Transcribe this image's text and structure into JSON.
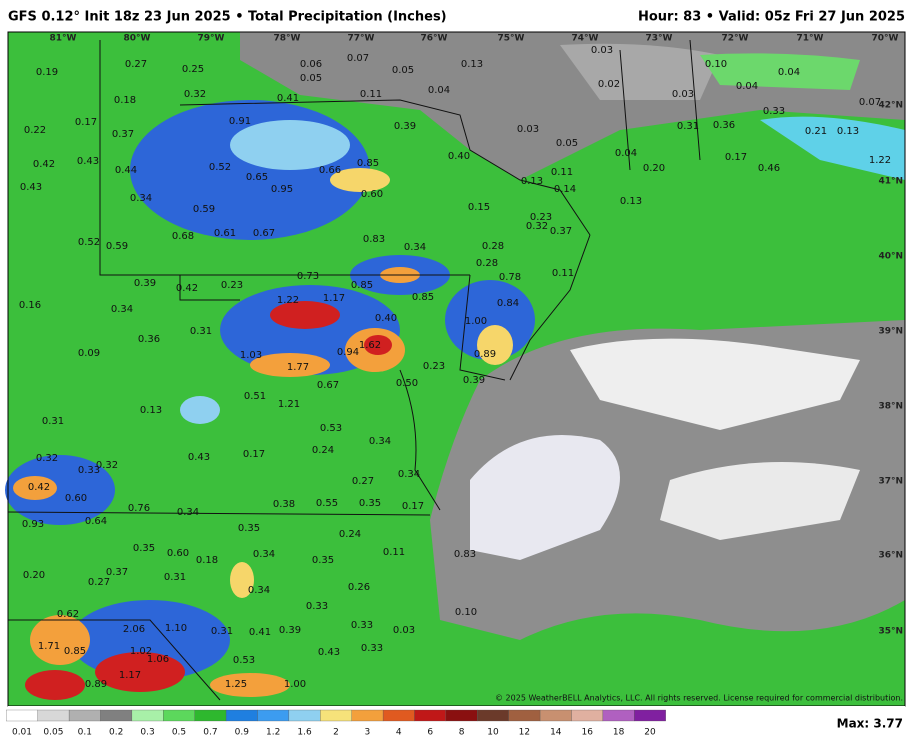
{
  "header": {
    "title": "GFS 0.12° Init 18z 23 Jun 2025 • Total Precipitation (Inches)",
    "valid": "Hour: 83 • Valid: 05z Fri 27 Jun 2025"
  },
  "longitudes": [
    "81°W",
    "80°W",
    "79°W",
    "78°W",
    "77°W",
    "76°W",
    "75°W",
    "74°W",
    "73°W",
    "72°W",
    "71°W",
    "70°W"
  ],
  "latitudes": [
    "42°N",
    "41°N",
    "40°N",
    "39°N",
    "38°N",
    "37°N",
    "36°N",
    "35°N"
  ],
  "map_labels": [
    "0.19",
    "0.27",
    "0.25",
    "0.06",
    "0.05",
    "0.07",
    "0.05",
    "0.13",
    "0.03",
    "0.10",
    "0.04",
    "0.18",
    "0.32",
    "0.41",
    "0.11",
    "0.04",
    "0.02",
    "0.03",
    "0.04",
    "0.07",
    "0.22",
    "0.17",
    "0.37",
    "0.91",
    "0.39",
    "0.03",
    "0.31",
    "0.36",
    "0.33",
    "0.21",
    "0.13",
    "0.05",
    "0.04",
    "0.42",
    "0.43",
    "0.44",
    "0.52",
    "0.65",
    "0.66",
    "0.85",
    "0.40",
    "0.17",
    "0.20",
    "0.46",
    "1.22",
    "0.43",
    "0.95",
    "0.60",
    "0.13",
    "0.11",
    "0.14",
    "0.34",
    "0.59",
    "0.15",
    "0.13",
    "0.68",
    "0.61",
    "0.67",
    "0.23",
    "0.32",
    "0.37",
    "0.52",
    "0.59",
    "0.83",
    "0.34",
    "0.28",
    "0.28",
    "0.78",
    "0.11",
    "0.39",
    "0.42",
    "0.23",
    "0.73",
    "0.85",
    "0.16",
    "0.34",
    "1.22",
    "1.17",
    "0.85",
    "0.84",
    "0.40",
    "0.31",
    "0.36",
    "1.00",
    "1.62",
    "0.09",
    "1.03",
    "0.94",
    "0.89",
    "1.77",
    "0.23",
    "0.39",
    "0.50",
    "0.67",
    "0.51",
    "1.21",
    "0.13",
    "0.31",
    "0.53",
    "0.34",
    "0.43",
    "0.17",
    "0.24",
    "0.32",
    "0.32",
    "0.33",
    "0.34",
    "0.27",
    "0.42",
    "0.60",
    "0.76",
    "0.34",
    "0.38",
    "0.55",
    "0.35",
    "0.17",
    "0.93",
    "0.64",
    "0.35",
    "0.24",
    "0.35",
    "0.60",
    "0.18",
    "0.34",
    "0.35",
    "0.11",
    "0.83",
    "0.20",
    "0.37",
    "0.27",
    "0.31",
    "0.34",
    "0.26",
    "0.33",
    "0.62",
    "0.10",
    "2.06",
    "1.10",
    "0.31",
    "0.41",
    "0.39",
    "0.33",
    "0.03",
    "1.71",
    "0.85",
    "1.02",
    "1.06",
    "0.53",
    "0.43",
    "0.33",
    "1.17",
    "0.89",
    "1.25",
    "1.00"
  ],
  "copyright": "© 2025 WeatherBELL Analytics, LLC. All rights reserved. License required for commercial distribution.",
  "colorbar": {
    "labels": [
      "0.01",
      "0.05",
      "0.1",
      "0.2",
      "0.3",
      "0.5",
      "0.7",
      "0.9",
      "1.2",
      "1.6",
      "2",
      "3",
      "4",
      "6",
      "8",
      "10",
      "12",
      "14",
      "16",
      "18",
      "20"
    ]
  },
  "max": "Max: 3.77"
}
